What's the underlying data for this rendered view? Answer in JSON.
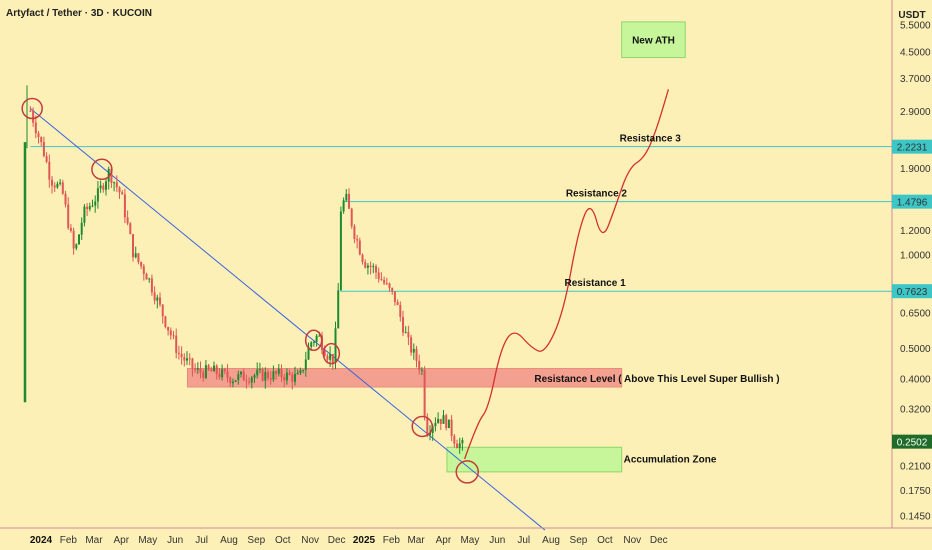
{
  "header": {
    "title": "Artyfact / Tether · 3D · KUCOIN",
    "currency": "USDT"
  },
  "colors": {
    "background": "#fcf0b6",
    "up": "#1e8a2e",
    "down": "#e05555",
    "trendline": "#3b63e0",
    "resistance_line": "#3cc6c6",
    "resistance_zone": "#f4a090",
    "accumulation_zone": "#c6f59a",
    "projection": "#d43030",
    "circle": "#c43b3b"
  },
  "chart_data": {
    "type": "candlestick",
    "y_scale": "log",
    "ylim": [
      0.132,
      6.3
    ],
    "y_ticks": [
      "5.5000",
      "4.5000",
      "3.7000",
      "2.9000",
      "1.9000",
      "1.2000",
      "1.0000",
      "0.6500",
      "0.5000",
      "0.4000",
      "0.3200",
      "0.2100",
      "0.1750",
      "0.1450"
    ],
    "x_ticks": [
      {
        "date": "2024-01-01",
        "label": "2024",
        "bold": true
      },
      {
        "date": "2024-02-01",
        "label": "Feb"
      },
      {
        "date": "2024-03-01",
        "label": "Mar"
      },
      {
        "date": "2024-04-01",
        "label": "Apr"
      },
      {
        "date": "2024-05-01",
        "label": "May"
      },
      {
        "date": "2024-06-01",
        "label": "Jun"
      },
      {
        "date": "2024-07-01",
        "label": "Jul"
      },
      {
        "date": "2024-08-01",
        "label": "Aug"
      },
      {
        "date": "2024-09-01",
        "label": "Sep"
      },
      {
        "date": "2024-10-01",
        "label": "Oct"
      },
      {
        "date": "2024-11-01",
        "label": "Nov"
      },
      {
        "date": "2024-12-01",
        "label": "Dec"
      },
      {
        "date": "2025-01-01",
        "label": "2025",
        "bold": true
      },
      {
        "date": "2025-02-01",
        "label": "Feb"
      },
      {
        "date": "2025-03-01",
        "label": "Mar"
      },
      {
        "date": "2025-04-01",
        "label": "Apr"
      },
      {
        "date": "2025-05-01",
        "label": "May"
      },
      {
        "date": "2025-06-01",
        "label": "Jun"
      },
      {
        "date": "2025-07-01",
        "label": "Jul"
      },
      {
        "date": "2025-08-01",
        "label": "Aug"
      },
      {
        "date": "2025-09-01",
        "label": "Sep"
      },
      {
        "date": "2025-10-01",
        "label": "Oct"
      },
      {
        "date": "2025-11-01",
        "label": "Nov"
      },
      {
        "date": "2025-12-01",
        "label": "Dec"
      }
    ],
    "price_path": [
      [
        "2023-12-20",
        2.9
      ],
      [
        "2024-01-05",
        2.1
      ],
      [
        "2024-01-12",
        1.75
      ],
      [
        "2024-01-25",
        1.6
      ],
      [
        "2024-02-08",
        1.0
      ],
      [
        "2024-02-18",
        1.35
      ],
      [
        "2024-03-05",
        1.55
      ],
      [
        "2024-03-18",
        1.85
      ],
      [
        "2024-04-01",
        1.55
      ],
      [
        "2024-04-15",
        1.0
      ],
      [
        "2024-05-01",
        0.85
      ],
      [
        "2024-05-20",
        0.62
      ],
      [
        "2024-06-05",
        0.48
      ],
      [
        "2024-06-25",
        0.42
      ],
      [
        "2024-07-15",
        0.42
      ],
      [
        "2024-08-05",
        0.4
      ],
      [
        "2024-09-01",
        0.41
      ],
      [
        "2024-10-01",
        0.41
      ],
      [
        "2024-10-20",
        0.4
      ],
      [
        "2024-11-01",
        0.52
      ],
      [
        "2024-11-10",
        0.55
      ],
      [
        "2024-11-20",
        0.48
      ],
      [
        "2024-11-28",
        0.46
      ],
      [
        "2024-12-03",
        0.78
      ],
      [
        "2024-12-06",
        1.45
      ],
      [
        "2024-12-12",
        1.5
      ],
      [
        "2024-12-20",
        1.2
      ],
      [
        "2025-01-01",
        0.95
      ],
      [
        "2025-01-12",
        0.9
      ],
      [
        "2025-01-25",
        0.8
      ],
      [
        "2025-02-05",
        0.72
      ],
      [
        "2025-02-20",
        0.52
      ],
      [
        "2025-03-03",
        0.45
      ],
      [
        "2025-03-08",
        0.42
      ],
      [
        "2025-03-12",
        0.27
      ],
      [
        "2025-03-25",
        0.3
      ],
      [
        "2025-04-05",
        0.29
      ],
      [
        "2025-04-15",
        0.25
      ],
      [
        "2025-04-25",
        0.24
      ]
    ],
    "trendline": {
      "from": [
        "2023-12-20",
        2.95
      ],
      "to": [
        "2025-07-25",
        0.13
      ]
    },
    "resistance_zone": {
      "from": "2024-06-15",
      "to": "2025-10-20",
      "low": 0.375,
      "high": 0.43,
      "label": "Resistance Level ( Above This Level Super Bullish )"
    },
    "accumulation_zone": {
      "from": "2025-04-05",
      "to": "2025-10-20",
      "low": 0.2,
      "high": 0.24,
      "label": "Accumulation Zone"
    },
    "new_ath_zone": {
      "from": "2025-10-20",
      "to": "2025-12-31",
      "low": 4.3,
      "high": 5.6,
      "label": "New ATH"
    },
    "resistance_levels": [
      {
        "label": "Resistance 3",
        "value": 2.2231,
        "value_label": "2.2231",
        "from": "2023-12-20"
      },
      {
        "label": "Resistance 2",
        "value": 1.4796,
        "value_label": "1.4796",
        "from": "2024-12-08"
      },
      {
        "label": "Resistance 1",
        "value": 0.7623,
        "value_label": "0.7623",
        "from": "2024-12-05"
      }
    ],
    "current_price": {
      "value": 0.2502,
      "label": "0.2502"
    },
    "projection_path": [
      [
        "2025-04-25",
        0.22
      ],
      [
        "2025-05-10",
        0.29
      ],
      [
        "2025-05-22",
        0.32
      ],
      [
        "2025-06-05",
        0.5
      ],
      [
        "2025-06-20",
        0.58
      ],
      [
        "2025-07-10",
        0.5
      ],
      [
        "2025-07-25",
        0.48
      ],
      [
        "2025-08-15",
        0.65
      ],
      [
        "2025-09-01",
        1.2
      ],
      [
        "2025-09-15",
        1.5
      ],
      [
        "2025-09-28",
        1.1
      ],
      [
        "2025-10-12",
        1.4
      ],
      [
        "2025-10-28",
        1.9
      ],
      [
        "2025-11-15",
        2.05
      ],
      [
        "2025-11-28",
        2.5
      ],
      [
        "2025-12-12",
        3.4
      ]
    ],
    "circle_markers": [
      [
        "2023-12-22",
        2.95
      ],
      [
        "2024-03-10",
        1.88
      ],
      [
        "2024-11-05",
        0.53
      ],
      [
        "2024-11-25",
        0.48
      ],
      [
        "2025-03-08",
        0.28
      ],
      [
        "2025-04-28",
        0.2
      ]
    ]
  }
}
